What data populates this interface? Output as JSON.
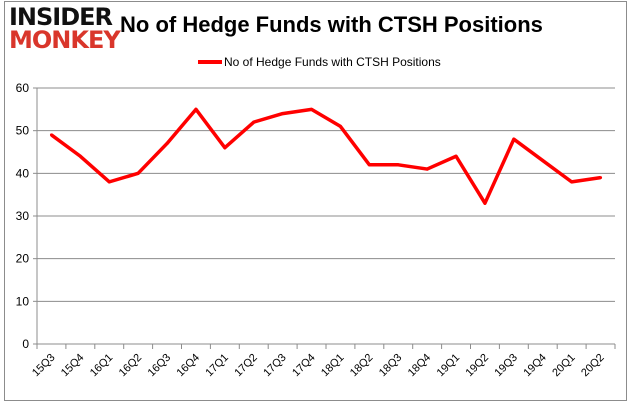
{
  "logo": {
    "line1": "INSIDER",
    "line2": "MONKEY"
  },
  "chart_data": {
    "type": "line",
    "title": "No of Hedge Funds with CTSH Positions",
    "xlabel": "",
    "ylabel": "",
    "categories": [
      "15Q3",
      "15Q4",
      "16Q1",
      "16Q2",
      "16Q3",
      "16Q4",
      "17Q1",
      "17Q2",
      "17Q3",
      "17Q4",
      "18Q1",
      "18Q2",
      "18Q3",
      "18Q4",
      "19Q1",
      "19Q2",
      "19Q3",
      "19Q4",
      "20Q1",
      "20Q2"
    ],
    "series": [
      {
        "name": "No of Hedge Funds with CTSH Positions",
        "color": "#ff0000",
        "values": [
          49,
          44,
          38,
          40,
          47,
          55,
          46,
          52,
          54,
          55,
          51,
          42,
          42,
          41,
          44,
          33,
          48,
          43,
          38,
          39
        ]
      }
    ],
    "ylim": [
      0,
      60
    ],
    "yticks": [
      0,
      10,
      20,
      30,
      40,
      50,
      60
    ],
    "grid": true,
    "legend": "top-center"
  }
}
